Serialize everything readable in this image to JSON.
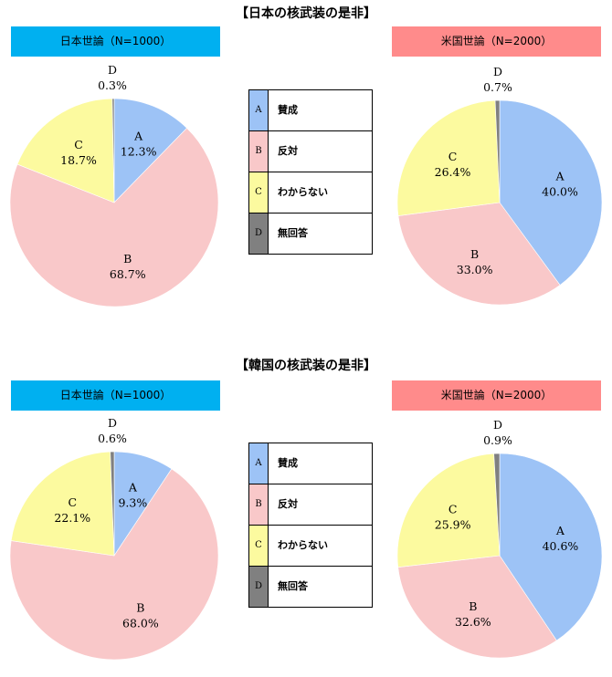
{
  "colors": {
    "A": "#9dc3f6",
    "B": "#f9c8c9",
    "C": "#fcfa9f",
    "D": "#808080",
    "japan_banner": "#00b0f0",
    "us_banner": "#ff8b8b"
  },
  "legend": [
    {
      "key": "A",
      "label": "賛成"
    },
    {
      "key": "B",
      "label": "反対"
    },
    {
      "key": "C",
      "label": "わからない"
    },
    {
      "key": "D",
      "label": "無回答"
    }
  ],
  "sections": [
    {
      "title": "【日本の核武装の是非】",
      "japan_banner": "日本世論（N=1000）",
      "us_banner": "米国世論（N=2000）"
    },
    {
      "title": "【韓国の核武装の是非】",
      "japan_banner": "日本世論（N=1000）",
      "us_banner": "米国世論（N=2000）"
    }
  ],
  "chart_data": [
    {
      "type": "pie",
      "section": "【日本の核武装の是非】",
      "panel": "日本世論（N=1000）",
      "categories": [
        "A",
        "B",
        "C",
        "D"
      ],
      "values": [
        12.3,
        68.7,
        18.7,
        0.3
      ],
      "labels": [
        "12.3%",
        "68.7%",
        "18.7%",
        "0.3%"
      ]
    },
    {
      "type": "pie",
      "section": "【日本の核武装の是非】",
      "panel": "米国世論（N=2000）",
      "categories": [
        "A",
        "B",
        "C",
        "D"
      ],
      "values": [
        40.0,
        33.0,
        26.4,
        0.7
      ],
      "labels": [
        "40.0%",
        "33.0%",
        "26.4%",
        "0.7%"
      ]
    },
    {
      "type": "pie",
      "section": "【韓国の核武装の是非】",
      "panel": "日本世論（N=1000）",
      "categories": [
        "A",
        "B",
        "C",
        "D"
      ],
      "values": [
        9.3,
        68.0,
        22.1,
        0.6
      ],
      "labels": [
        "9.3%",
        "68.0%",
        "22.1%",
        "0.6%"
      ]
    },
    {
      "type": "pie",
      "section": "【韓国の核武装の是非】",
      "panel": "米国世論（N=2000）",
      "categories": [
        "A",
        "B",
        "C",
        "D"
      ],
      "values": [
        40.6,
        32.6,
        25.9,
        0.9
      ],
      "labels": [
        "40.6%",
        "32.6%",
        "25.9%",
        "0.9%"
      ]
    }
  ]
}
